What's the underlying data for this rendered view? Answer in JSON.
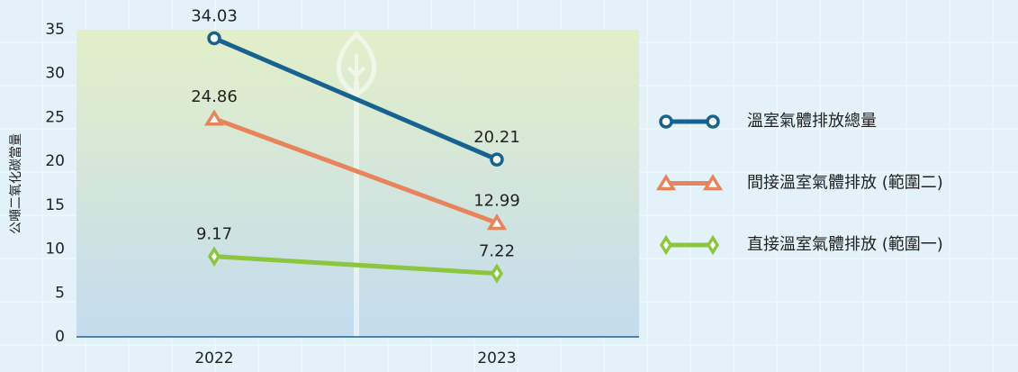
{
  "chart_data": {
    "type": "line",
    "y_label": "公噸二氧化碳當量",
    "categories": [
      "2022",
      "2023"
    ],
    "series": [
      {
        "name": "溫室氣體排放總量",
        "color": "#17628f",
        "marker": "circle",
        "values": [
          34.03,
          20.21
        ]
      },
      {
        "name": "間接溫室氣體排放 (範圍二)",
        "color": "#e8845c",
        "marker": "triangle",
        "values": [
          24.86,
          12.99
        ]
      },
      {
        "name": "直接溫室氣體排放 (範圍一)",
        "color": "#8cc63f",
        "marker": "diamond",
        "values": [
          9.17,
          7.22
        ]
      }
    ],
    "ylim": [
      0,
      35
    ],
    "yticks": [
      0,
      5,
      10,
      15,
      20,
      25,
      30,
      35
    ],
    "legend": "right"
  }
}
